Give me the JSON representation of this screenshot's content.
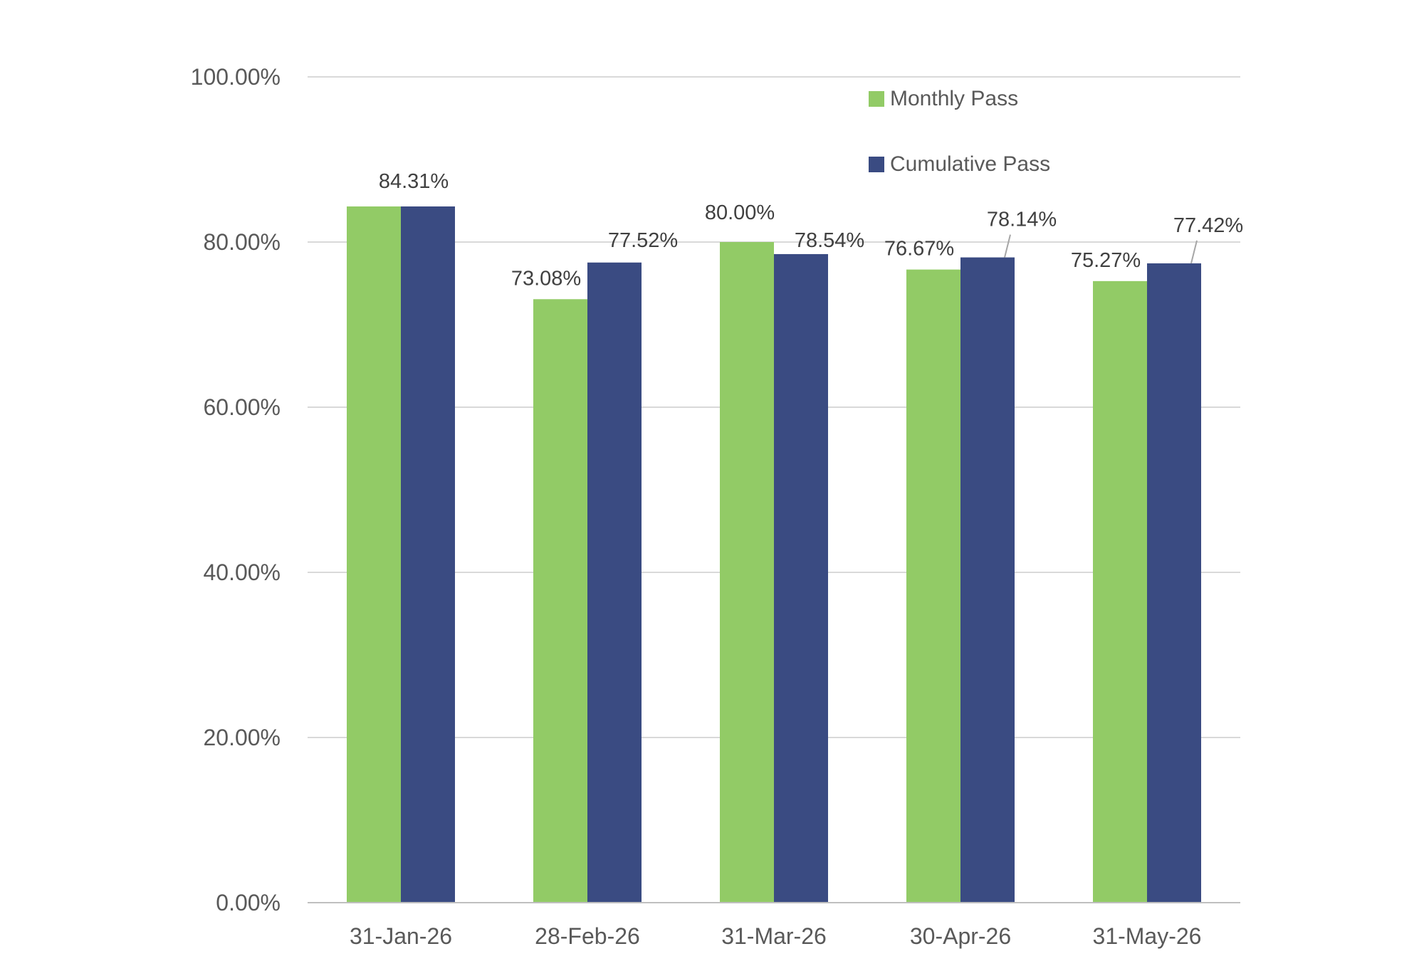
{
  "chart_data": {
    "type": "bar",
    "title": "",
    "xlabel": "",
    "ylabel": "",
    "ylim": [
      0,
      100
    ],
    "ytick_values": [
      0,
      20,
      40,
      60,
      80,
      100
    ],
    "ytick_labels": [
      "0.00%",
      "20.00%",
      "40.00%",
      "60.00%",
      "80.00%",
      "100.00%"
    ],
    "grid": true,
    "legend_position": "top-right",
    "categories": [
      "31-Jan-26",
      "28-Feb-26",
      "31-Mar-26",
      "30-Apr-26",
      "31-May-26"
    ],
    "series": [
      {
        "name": "Monthly Pass",
        "color": "#92cb66",
        "values": [
          84.31,
          73.08,
          80.0,
          76.67,
          75.27
        ],
        "labels": [
          "",
          "73.08%",
          "80.00%",
          "76.67%",
          "75.27%"
        ]
      },
      {
        "name": "Cumulative Pass",
        "color": "#3a4b82",
        "values": [
          84.31,
          77.52,
          78.54,
          78.14,
          77.42
        ],
        "labels": [
          "84.31%",
          "77.52%",
          "78.54%",
          "78.14%",
          "77.42%"
        ]
      }
    ]
  }
}
